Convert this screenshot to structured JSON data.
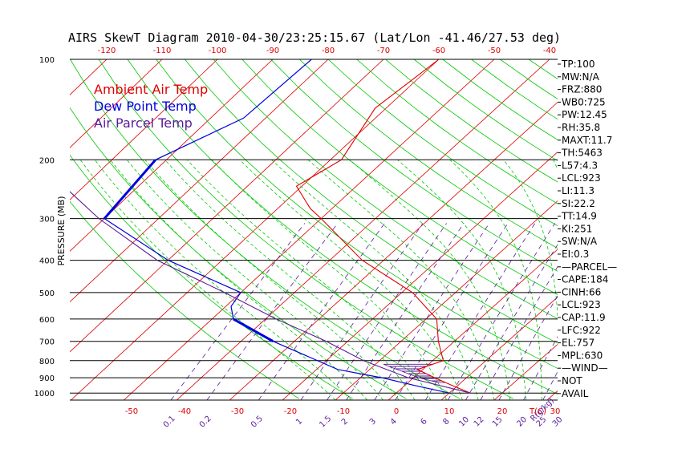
{
  "chart_data": {
    "type": "line",
    "title": "AIRS SkewT Diagram 2010-04-30/23:25:15.67 (Lat/Lon -41.46/27.53 deg)",
    "ylabel": "PRESSURE (MB)",
    "ylim": [
      1050,
      100
    ],
    "yscale": "log",
    "pressure_ticks": [
      100,
      200,
      300,
      400,
      500,
      600,
      700,
      800,
      900,
      1000
    ],
    "temp_top_ticks": [
      -120,
      -110,
      -100,
      -90,
      -80,
      -70,
      -60,
      -50,
      -40
    ],
    "temp_bottom_ticks": [
      -50,
      -40,
      -30,
      -20,
      -10,
      0,
      10,
      20,
      30
    ],
    "temp_axis_label": "T(C)",
    "mixing_ratio_labels": [
      "0.1",
      "0.2",
      "0.5",
      "1",
      "1.5",
      "2",
      "3",
      "4",
      "6",
      "8",
      "10",
      "12",
      "15",
      "20",
      "25",
      "30"
    ],
    "mixing_ratio_unit": "R(g/kg)",
    "legend": [
      {
        "label": "Ambient Air Temp",
        "color": "#e00000"
      },
      {
        "label": "Dew Point Temp",
        "color": "#0000e0"
      },
      {
        "label": "Air Parcel Temp",
        "color": "#5a1a9a"
      }
    ],
    "series": [
      {
        "name": "Ambient Air Temp",
        "color": "#e00000",
        "points": [
          [
            100,
            -60
          ],
          [
            140,
            -62
          ],
          [
            200,
            -58
          ],
          [
            240,
            -61
          ],
          [
            280,
            -54
          ],
          [
            300,
            -50
          ],
          [
            400,
            -34
          ],
          [
            500,
            -18
          ],
          [
            600,
            -8
          ],
          [
            700,
            -3
          ],
          [
            800,
            2
          ],
          [
            850,
            -1
          ],
          [
            900,
            4
          ],
          [
            950,
            9
          ],
          [
            1000,
            14
          ]
        ]
      },
      {
        "name": "Dew Point Temp",
        "color": "#0000e0",
        "points": [
          [
            100,
            -83
          ],
          [
            150,
            -84
          ],
          [
            200,
            -92
          ],
          [
            300,
            -90
          ],
          [
            400,
            -70
          ],
          [
            500,
            -50
          ],
          [
            550,
            -49
          ],
          [
            600,
            -46
          ],
          [
            700,
            -34
          ],
          [
            850,
            -16
          ],
          [
            900,
            -6
          ],
          [
            950,
            2
          ],
          [
            1000,
            10
          ]
        ]
      },
      {
        "name": "Air Parcel Temp",
        "color": "#5a1a9a",
        "points": [
          [
            140,
            -120
          ],
          [
            200,
            -114
          ],
          [
            300,
            -91
          ],
          [
            400,
            -72
          ],
          [
            500,
            -53
          ],
          [
            600,
            -38
          ],
          [
            700,
            -24
          ],
          [
            800,
            -13
          ],
          [
            900,
            -1
          ],
          [
            1000,
            14
          ]
        ]
      }
    ],
    "grid": true
  },
  "indices": [
    "TP:100",
    "MW:N/A",
    "FRZ:880",
    "WB0:725",
    "PW:12.45",
    "RH:35.8",
    "MAXT:11.7",
    "TH:5463",
    "L57:4.3",
    "LCL:923",
    "LI:11.3",
    "SI:22.2",
    "TT:14.9",
    "KI:251",
    "SW:N/A",
    "EI:0.3",
    "—PARCEL—",
    "CAPE:184",
    "CINH:66",
    "LCL:923",
    "CAP:11.9",
    "LFC:922",
    "EL:757",
    "MPL:630",
    "—WIND—",
    "NOT",
    "AVAIL"
  ],
  "colors": {
    "red": "#e00000",
    "green": "#00c800",
    "blue": "#0000e0",
    "purple": "#5a1a9a",
    "black": "#000000"
  }
}
